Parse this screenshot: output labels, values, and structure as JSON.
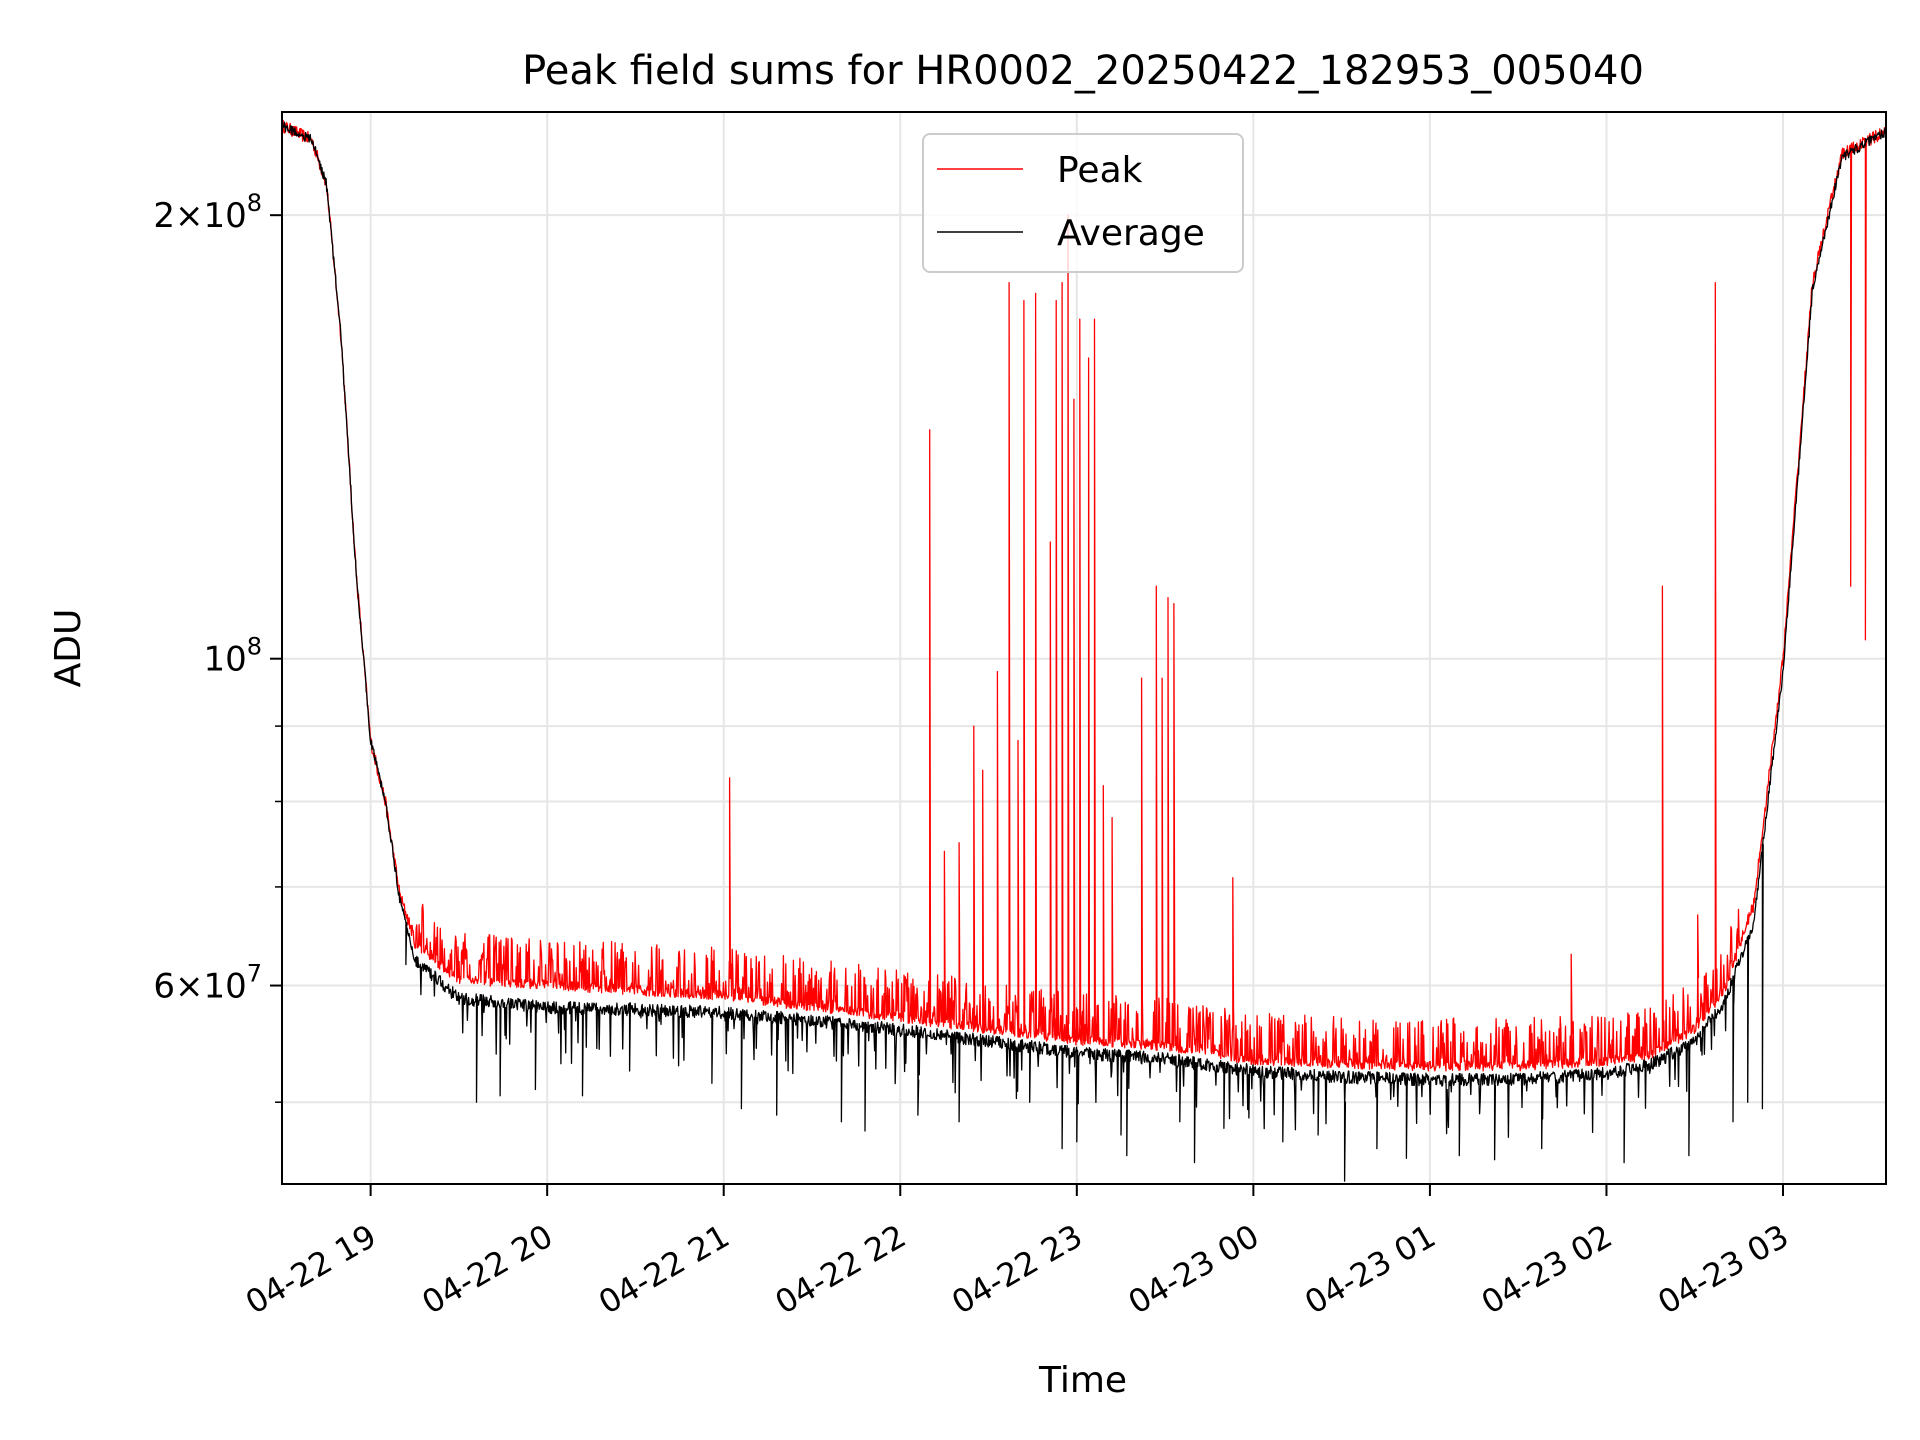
{
  "chart_data": {
    "type": "line",
    "title": "Peak field sums for HR0002_20250422_182953_005040",
    "xlabel": "Time",
    "ylabel": "ADU",
    "y_scale": "log",
    "ylim": [
      44000000,
      235000000
    ],
    "xlim": [
      "2025-04-22 18:29:53",
      "2025-04-23 03:35:00"
    ],
    "grid": true,
    "legend_position": "upper center",
    "x_ticks": [
      {
        "value": "2025-04-22 19:00",
        "label": "04-22 19"
      },
      {
        "value": "2025-04-22 20:00",
        "label": "04-22 20"
      },
      {
        "value": "2025-04-22 21:00",
        "label": "04-22 21"
      },
      {
        "value": "2025-04-22 22:00",
        "label": "04-22 22"
      },
      {
        "value": "2025-04-22 23:00",
        "label": "04-22 23"
      },
      {
        "value": "2025-04-23 00:00",
        "label": "04-23 00"
      },
      {
        "value": "2025-04-23 01:00",
        "label": "04-23 01"
      },
      {
        "value": "2025-04-23 02:00",
        "label": "04-23 02"
      },
      {
        "value": "2025-04-23 03:00",
        "label": "04-23 03"
      }
    ],
    "y_ticks_major": [
      {
        "value": 60000000,
        "mant": "6",
        "exp": "7"
      },
      {
        "value": 100000000,
        "mant": "",
        "exp": "8"
      },
      {
        "value": 200000000,
        "mant": "2",
        "exp": "8"
      }
    ],
    "y_ticks_minor": [
      50000000,
      70000000,
      80000000,
      90000000,
      300000000
    ],
    "series": [
      {
        "name": "Peak",
        "color": "#ff0000",
        "baseline": [
          [
            "2025-04-22 18:30",
            230000000
          ],
          [
            "2025-04-22 18:40",
            225000000
          ],
          [
            "2025-04-22 18:45",
            210000000
          ],
          [
            "2025-04-22 18:50",
            165000000
          ],
          [
            "2025-04-22 18:55",
            115000000
          ],
          [
            "2025-04-22 19:00",
            88000000
          ],
          [
            "2025-04-22 19:05",
            80000000
          ],
          [
            "2025-04-22 19:10",
            69000000
          ],
          [
            "2025-04-22 19:15",
            64500000
          ],
          [
            "2025-04-22 19:30",
            61000000
          ],
          [
            "2025-04-22 20:00",
            60500000
          ],
          [
            "2025-04-22 20:30",
            60000000
          ],
          [
            "2025-04-22 21:00",
            59500000
          ],
          [
            "2025-04-22 21:30",
            58500000
          ],
          [
            "2025-04-22 22:00",
            57500000
          ],
          [
            "2025-04-22 22:30",
            56500000
          ],
          [
            "2025-04-22 23:00",
            55500000
          ],
          [
            "2025-04-22 23:30",
            55000000
          ],
          [
            "2025-04-23 00:00",
            53800000
          ],
          [
            "2025-04-23 00:30",
            53500000
          ],
          [
            "2025-04-23 01:00",
            53300000
          ],
          [
            "2025-04-23 01:30",
            53300000
          ],
          [
            "2025-04-23 02:00",
            53700000
          ],
          [
            "2025-04-23 02:15",
            54200000
          ],
          [
            "2025-04-23 02:30",
            56500000
          ],
          [
            "2025-04-23 02:40",
            60000000
          ],
          [
            "2025-04-23 02:50",
            68000000
          ],
          [
            "2025-04-23 03:00",
            100000000
          ],
          [
            "2025-04-23 03:10",
            180000000
          ],
          [
            "2025-04-23 03:20",
            220000000
          ],
          [
            "2025-04-23 03:35",
            228000000
          ]
        ],
        "spikes": [
          [
            "2025-04-22 21:02",
            83000000
          ],
          [
            "2025-04-22 22:10",
            143000000
          ],
          [
            "2025-04-22 22:15",
            74000000
          ],
          [
            "2025-04-22 22:20",
            75000000
          ],
          [
            "2025-04-22 22:25",
            90000000
          ],
          [
            "2025-04-22 22:28",
            84000000
          ],
          [
            "2025-04-22 22:33",
            98000000
          ],
          [
            "2025-04-22 22:37",
            180000000
          ],
          [
            "2025-04-22 22:40",
            88000000
          ],
          [
            "2025-04-22 22:42",
            175000000
          ],
          [
            "2025-04-22 22:46",
            177000000
          ],
          [
            "2025-04-22 22:51",
            120000000
          ],
          [
            "2025-04-22 22:53",
            175000000
          ],
          [
            "2025-04-22 22:55",
            180000000
          ],
          [
            "2025-04-22 22:57",
            200000000
          ],
          [
            "2025-04-22 22:59",
            150000000
          ],
          [
            "2025-04-22 23:01",
            170000000
          ],
          [
            "2025-04-22 23:04",
            160000000
          ],
          [
            "2025-04-22 23:06",
            170000000
          ],
          [
            "2025-04-22 23:09",
            82000000
          ],
          [
            "2025-04-22 23:12",
            78000000
          ],
          [
            "2025-04-22 23:22",
            97000000
          ],
          [
            "2025-04-22 23:27",
            112000000
          ],
          [
            "2025-04-22 23:29",
            97000000
          ],
          [
            "2025-04-22 23:31",
            110000000
          ],
          [
            "2025-04-22 23:33",
            109000000
          ],
          [
            "2025-04-22 23:53",
            71000000
          ],
          [
            "2025-04-23 01:48",
            63000000
          ],
          [
            "2025-04-23 02:19",
            112000000
          ],
          [
            "2025-04-23 02:31",
            67000000
          ],
          [
            "2025-04-23 02:37",
            180000000
          ],
          [
            "2025-04-23 02:42",
            62000000
          ],
          [
            "2025-04-23 03:23",
            112000000
          ],
          [
            "2025-04-23 03:28",
            103000000
          ]
        ]
      },
      {
        "name": "Average",
        "color": "#000000",
        "baseline": [
          [
            "2025-04-22 18:30",
            230000000
          ],
          [
            "2025-04-22 18:40",
            225000000
          ],
          [
            "2025-04-22 18:45",
            210000000
          ],
          [
            "2025-04-22 18:50",
            165000000
          ],
          [
            "2025-04-22 18:55",
            115000000
          ],
          [
            "2025-04-22 19:00",
            88000000
          ],
          [
            "2025-04-22 19:05",
            80000000
          ],
          [
            "2025-04-22 19:10",
            68500000
          ],
          [
            "2025-04-22 19:15",
            62500000
          ],
          [
            "2025-04-22 19:30",
            58800000
          ],
          [
            "2025-04-22 20:00",
            58000000
          ],
          [
            "2025-04-22 20:30",
            57800000
          ],
          [
            "2025-04-22 21:00",
            57500000
          ],
          [
            "2025-04-22 21:30",
            56800000
          ],
          [
            "2025-04-22 22:00",
            56000000
          ],
          [
            "2025-04-22 22:30",
            55000000
          ],
          [
            "2025-04-22 23:00",
            54000000
          ],
          [
            "2025-04-22 23:30",
            53500000
          ],
          [
            "2025-04-23 00:00",
            52500000
          ],
          [
            "2025-04-23 00:30",
            52000000
          ],
          [
            "2025-04-23 01:00",
            51800000
          ],
          [
            "2025-04-23 01:30",
            51800000
          ],
          [
            "2025-04-23 02:00",
            52300000
          ],
          [
            "2025-04-23 02:15",
            53000000
          ],
          [
            "2025-04-23 02:30",
            55000000
          ],
          [
            "2025-04-23 02:40",
            58500000
          ],
          [
            "2025-04-23 02:50",
            66000000
          ],
          [
            "2025-04-23 03:00",
            98000000
          ],
          [
            "2025-04-23 03:10",
            178000000
          ],
          [
            "2025-04-23 03:20",
            219000000
          ],
          [
            "2025-04-23 03:35",
            228000000
          ]
        ],
        "dips": [
          [
            "2025-04-22 19:12",
            62000000
          ],
          [
            "2025-04-22 19:36",
            50000000
          ],
          [
            "2025-04-22 19:44",
            50500000
          ],
          [
            "2025-04-22 19:56",
            51000000
          ],
          [
            "2025-04-22 20:12",
            50500000
          ],
          [
            "2025-04-22 20:28",
            52500000
          ],
          [
            "2025-04-22 20:56",
            51500000
          ],
          [
            "2025-04-22 21:06",
            49500000
          ],
          [
            "2025-04-22 21:18",
            49000000
          ],
          [
            "2025-04-22 21:40",
            48500000
          ],
          [
            "2025-04-22 21:48",
            47800000
          ],
          [
            "2025-04-22 22:06",
            49000000
          ],
          [
            "2025-04-22 22:20",
            48500000
          ],
          [
            "2025-04-22 22:44",
            50000000
          ],
          [
            "2025-04-22 22:55",
            46500000
          ],
          [
            "2025-04-22 23:00",
            47000000
          ],
          [
            "2025-04-22 23:15",
            47500000
          ],
          [
            "2025-04-22 23:17",
            46000000
          ],
          [
            "2025-04-22 23:35",
            48500000
          ],
          [
            "2025-04-22 23:40",
            45500000
          ],
          [
            "2025-04-22 23:50",
            48000000
          ],
          [
            "2025-04-23 00:10",
            47000000
          ],
          [
            "2025-04-23 00:22",
            47500000
          ],
          [
            "2025-04-23 00:31",
            44200000
          ],
          [
            "2025-04-23 00:42",
            46500000
          ],
          [
            "2025-04-23 00:52",
            45800000
          ],
          [
            "2025-04-23 01:10",
            46000000
          ],
          [
            "2025-04-23 01:22",
            45700000
          ],
          [
            "2025-04-23 01:38",
            46500000
          ],
          [
            "2025-04-23 02:06",
            45500000
          ],
          [
            "2025-04-23 02:28",
            46000000
          ],
          [
            "2025-04-23 02:43",
            48500000
          ],
          [
            "2025-04-23 02:48",
            50000000
          ],
          [
            "2025-04-23 02:53",
            49500000
          ]
        ]
      }
    ]
  }
}
